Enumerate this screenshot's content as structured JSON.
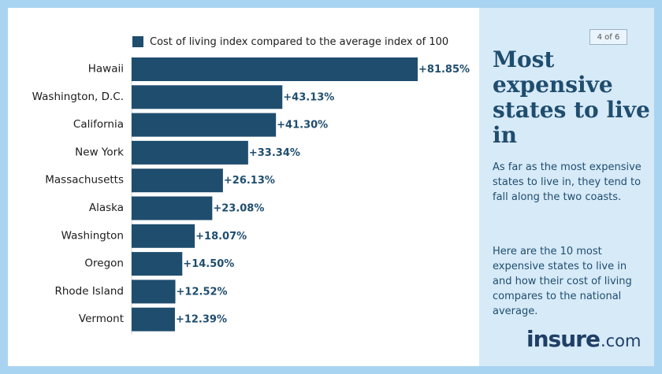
{
  "page_badge": "4 of 6",
  "side": {
    "title": "Most expensive states to live in",
    "paragraph1": "As far as the most expensive states to live in, they tend to fall along the two coasts.",
    "paragraph2": "Here are the 10 most expensive states to live in and how their cost of living compares to the national average."
  },
  "logo": {
    "main": "insure",
    "suffix": ".com"
  },
  "colors": {
    "bar": "#1f4d6e",
    "label": "#1f4d6e",
    "background": "#a9d4f1",
    "panel": "#d7eaf8"
  },
  "chart_data": {
    "type": "bar",
    "orientation": "horizontal",
    "legend": "Cost of living index compared to the average index of 100",
    "categories": [
      "Hawaii",
      "Washington, D.C.",
      "California",
      "New York",
      "Massachusetts",
      "Alaska",
      "Washington",
      "Oregon",
      "Rhode Island",
      "Vermont"
    ],
    "values": [
      81.85,
      43.13,
      41.3,
      33.34,
      26.13,
      23.08,
      18.07,
      14.5,
      12.52,
      12.39
    ],
    "value_labels": [
      "+81.85%",
      "+43.13%",
      "+41.30%",
      "+33.34%",
      "+26.13%",
      "+23.08%",
      "+18.07%",
      "+14.50%",
      "+12.52%",
      "+12.39%"
    ],
    "xlim": [
      0,
      81.85
    ],
    "unit": "%"
  }
}
